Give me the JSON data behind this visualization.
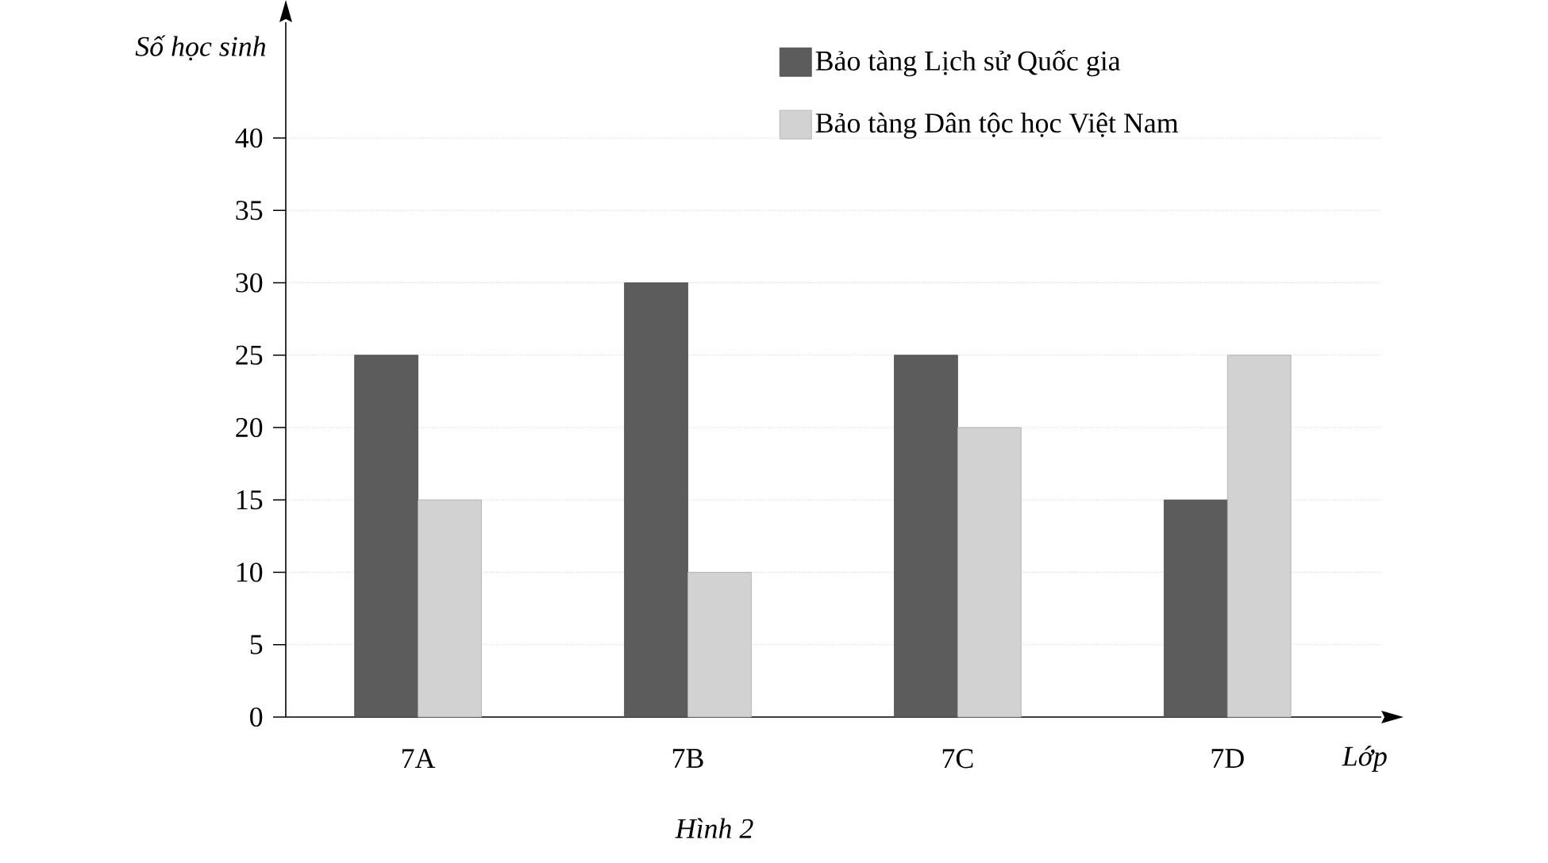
{
  "chart_data": {
    "type": "bar",
    "xlabel": "Lớp",
    "ylabel": "Số học sinh",
    "categories": [
      "7A",
      "7B",
      "7C",
      "7D"
    ],
    "series": [
      {
        "name": "Bảo tàng Lịch sử Quốc gia",
        "color": "#5c5c5c",
        "values": [
          25,
          30,
          25,
          15
        ]
      },
      {
        "name": "Bảo tàng Dân tộc học Việt Nam",
        "color": "#d2d2d2",
        "values": [
          15,
          10,
          20,
          25
        ]
      }
    ],
    "ylim": [
      0,
      48
    ],
    "yticks": [
      0,
      5,
      10,
      15,
      20,
      25,
      30,
      35,
      40
    ],
    "grid": "y",
    "legend": "top right",
    "annotations": [
      "Hình 2"
    ]
  }
}
